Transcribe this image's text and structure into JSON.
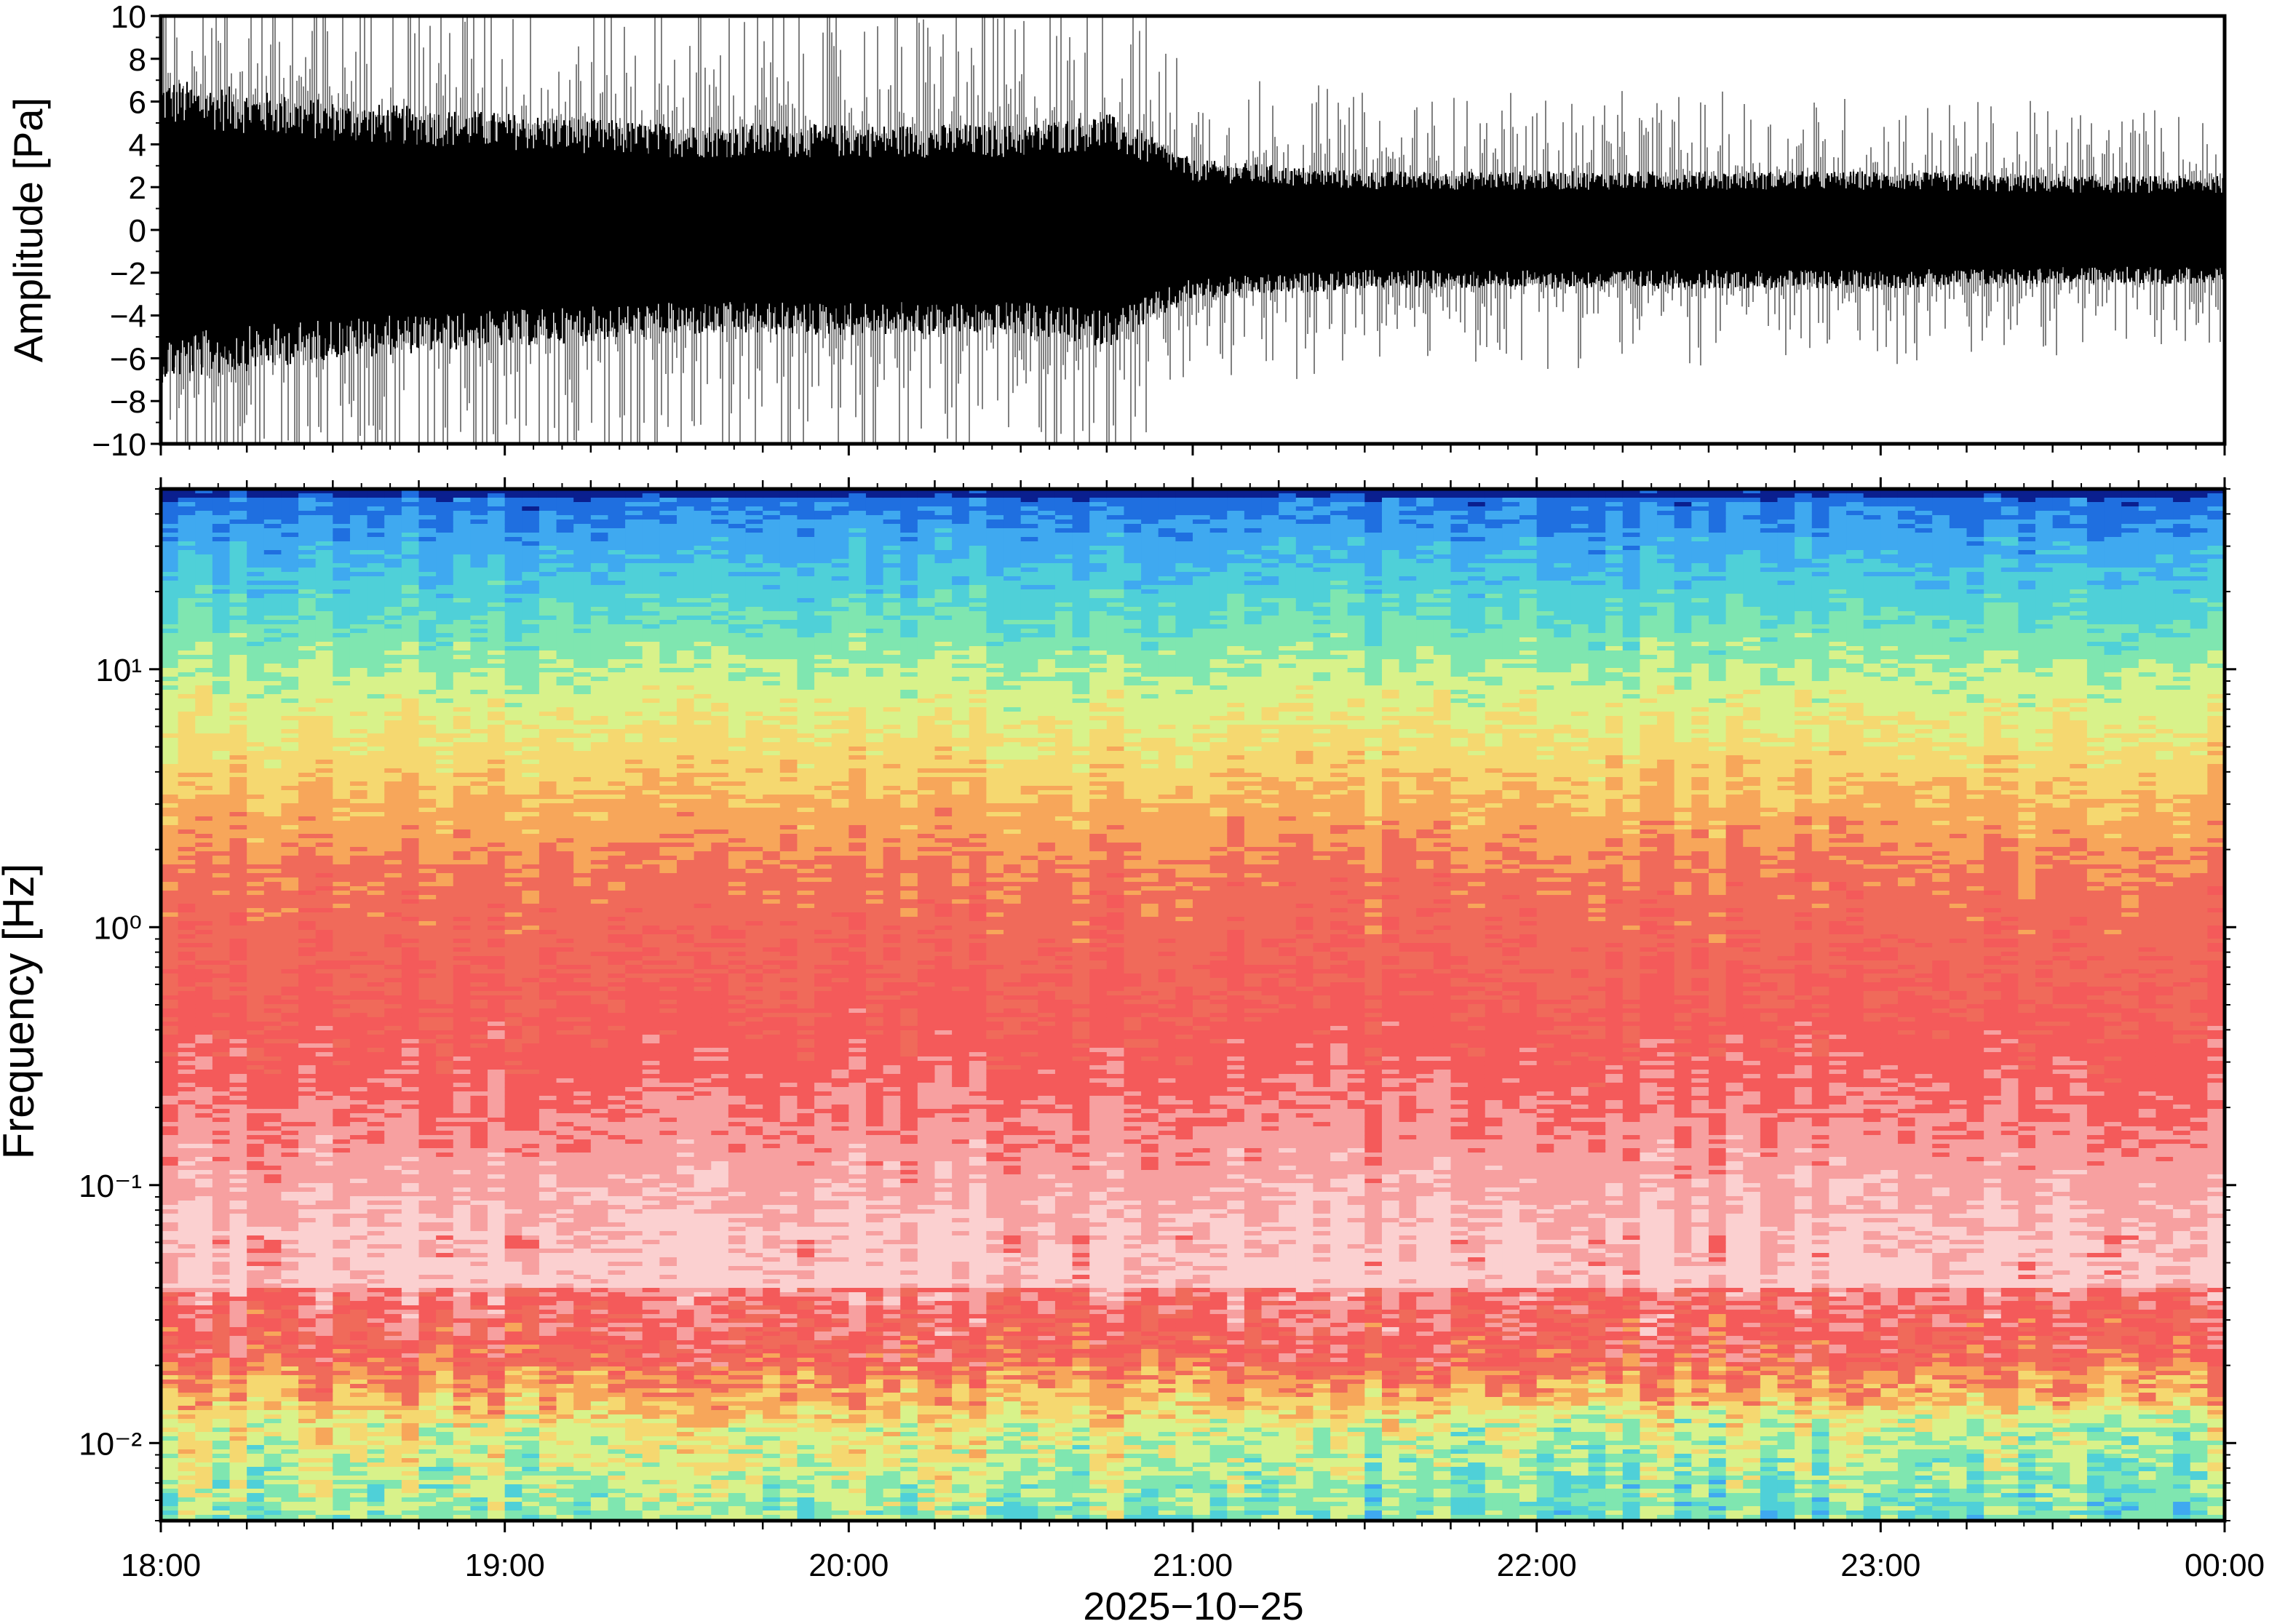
{
  "chart_data": [
    {
      "type": "line",
      "panel": "waveform",
      "ylabel": "Amplitude [Pa]",
      "ylim": [
        -10,
        10
      ],
      "yticks": [
        "10",
        "8",
        "6",
        "4",
        "2",
        "0",
        "−2",
        "−4",
        "−6",
        "−8",
        "−10"
      ],
      "x": [
        "18:00",
        "18:30",
        "19:00",
        "19:30",
        "20:00",
        "20:30",
        "20:45",
        "21:00",
        "21:30",
        "22:00",
        "22:30",
        "23:00",
        "23:30",
        "00:00"
      ],
      "series": [
        {
          "values": [
            6.5,
            5.5,
            5.0,
            4.5,
            4.5,
            4.5,
            5.0,
            3.0,
            2.5,
            2.5,
            2.5,
            2.5,
            2.3,
            2.3
          ]
        }
      ],
      "grid": false
    },
    {
      "type": "heatmap",
      "panel": "spectrogram",
      "ylabel": "Frequency [Hz]",
      "yscale": "log",
      "ylim": [
        0.005,
        50
      ],
      "yticks": [
        "10⁻²",
        "10⁻¹",
        "10⁰",
        "10¹"
      ],
      "xlabel": "2025−10−25",
      "xticks": [
        "18:00",
        "19:00",
        "20:00",
        "21:00",
        "22:00",
        "23:00",
        "00:00"
      ],
      "colormap": [
        "#0a1f8f",
        "#1f6fe0",
        "#3fa9f0",
        "#4fd0d8",
        "#7fe6b0",
        "#d8f28a",
        "#f5d870",
        "#f7a65a",
        "#f06a5a",
        "#f45a5a",
        "#f7a0a0",
        "#fbd0d0"
      ],
      "grid": false
    }
  ]
}
